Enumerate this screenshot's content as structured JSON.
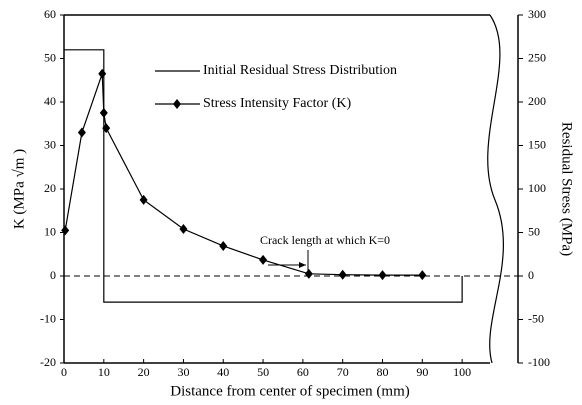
{
  "chart_data": {
    "type": "line",
    "xlabel": "Distance from center of specimen (mm)",
    "ylabel": "K (MPa √m )",
    "y2label": "Residual Stress (MPa)",
    "annotation": "Crack length at which K=0",
    "xlim": [
      0,
      107
    ],
    "xticks": [
      0,
      10,
      20,
      30,
      40,
      50,
      60,
      70,
      80,
      90,
      100
    ],
    "ylim": [
      -20,
      60
    ],
    "yticks": [
      -20,
      -10,
      0,
      10,
      20,
      30,
      40,
      50,
      60
    ],
    "y2lim": [
      -100,
      300
    ],
    "y2ticks": [
      -100,
      -50,
      0,
      50,
      100,
      150,
      200,
      250,
      300
    ],
    "zero_line": true,
    "series": [
      {
        "name": "Initial Residual Stress Distribution",
        "color": "#000000",
        "axis": "y2",
        "marker": "none",
        "x": [
          0,
          10,
          10,
          100,
          100
        ],
        "values": [
          260,
          260,
          -30,
          -30,
          0
        ]
      },
      {
        "name": "Stress Intensity Factor (K)",
        "color": "#000000",
        "marker": "diamond",
        "x": [
          0.3,
          4.5,
          9.6,
          10,
          10.6,
          20,
          30,
          40,
          50,
          61.5,
          70,
          80,
          90
        ],
        "values": [
          10.5,
          33,
          46.5,
          37.5,
          34,
          17.5,
          10.8,
          6.9,
          3.7,
          0.5,
          0.3,
          0.2,
          0.2
        ]
      }
    ]
  }
}
